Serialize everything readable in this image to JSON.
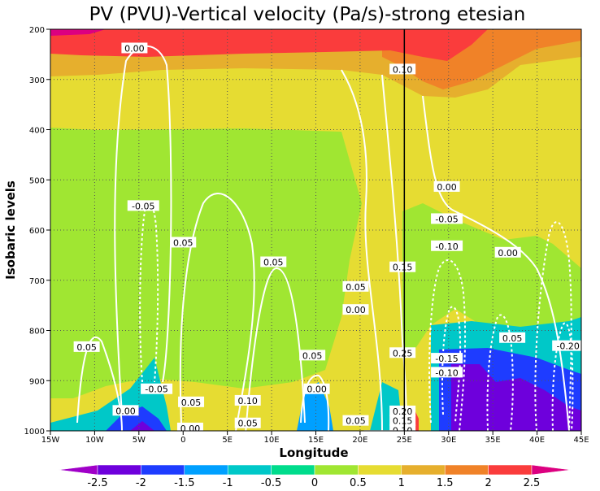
{
  "chart_data": {
    "type": "heatmap",
    "title": "PV (PVU)-Vertical velocity (Pa/s)-strong etesian",
    "xlabel": "Longitude",
    "ylabel": "Isobaric levels",
    "x_ticks": [
      "15W",
      "10W",
      "5W",
      "0",
      "5E",
      "10E",
      "15E",
      "20E",
      "25E",
      "30E",
      "35E",
      "40E",
      "45E"
    ],
    "x_values": [
      -15,
      -10,
      -5,
      0,
      5,
      10,
      15,
      20,
      25,
      30,
      35,
      40,
      45
    ],
    "y_ticks": [
      "200",
      "300",
      "400",
      "500",
      "600",
      "700",
      "800",
      "900",
      "1000"
    ],
    "y_values": [
      200,
      300,
      400,
      500,
      600,
      700,
      800,
      900,
      1000
    ],
    "xlim": [
      -15,
      45
    ],
    "ylim": [
      1000,
      200
    ],
    "grid": true,
    "vertical_marker_x": 25,
    "colorbar": {
      "labels": [
        "-2.5",
        "-2",
        "-1.5",
        "-1",
        "-0.5",
        "0",
        "0.5",
        "1",
        "1.5",
        "2",
        "2.5"
      ],
      "colors": [
        "#a000c8",
        "#6e00dc",
        "#1e3cff",
        "#00a0ff",
        "#00c8c8",
        "#00dc8c",
        "#a0e632",
        "#e6dc32",
        "#e6af2d",
        "#f08228",
        "#fa3c3c",
        "#dc0080"
      ]
    },
    "pv_fields": [
      {
        "level": "bottom",
        "pv": 0.5,
        "color": "#e6dc32"
      },
      {
        "level": "lower",
        "pv": 0.5,
        "color": "#a0e632"
      },
      {
        "level": "mid",
        "pv": 1.0,
        "color": "#e6dc32"
      },
      {
        "level": "upper",
        "pv": 1.5,
        "color": "#e6af2d"
      },
      {
        "level": "tropopause",
        "pv": 2.5,
        "color": "#fa3c3c"
      }
    ],
    "contour_labels": [
      {
        "text": "0.00",
        "lon": -5.5,
        "p": 238
      },
      {
        "text": "0.10",
        "lon": 24.8,
        "p": 280
      },
      {
        "text": "0.00",
        "lon": 29.8,
        "p": 514
      },
      {
        "text": "-0.05",
        "lon": -4.5,
        "p": 552
      },
      {
        "text": "-0.05",
        "lon": 29.8,
        "p": 578
      },
      {
        "text": "0.05",
        "lon": 0,
        "p": 625
      },
      {
        "text": "-0.10",
        "lon": 29.8,
        "p": 632
      },
      {
        "text": "0.00",
        "lon": 36.7,
        "p": 645
      },
      {
        "text": "0.05",
        "lon": 10.2,
        "p": 664
      },
      {
        "text": "0.15",
        "lon": 24.8,
        "p": 674
      },
      {
        "text": "0.05",
        "lon": 19.5,
        "p": 713
      },
      {
        "text": "0.00",
        "lon": 19.5,
        "p": 759
      },
      {
        "text": "0.05",
        "lon": 37.2,
        "p": 815
      },
      {
        "text": "0.05",
        "lon": -10.9,
        "p": 833
      },
      {
        "text": "-0.20",
        "lon": 43.5,
        "p": 831
      },
      {
        "text": "0.05",
        "lon": 14.6,
        "p": 850
      },
      {
        "text": "0.25",
        "lon": 24.8,
        "p": 845
      },
      {
        "text": "-0.15",
        "lon": 29.8,
        "p": 856
      },
      {
        "text": "-0.10",
        "lon": 29.8,
        "p": 884
      },
      {
        "text": "-0.05",
        "lon": -3.0,
        "p": 917
      },
      {
        "text": "0.00",
        "lon": 15.1,
        "p": 917
      },
      {
        "text": "0.05",
        "lon": 0.9,
        "p": 943
      },
      {
        "text": "0.10",
        "lon": 7.3,
        "p": 940
      },
      {
        "text": "0.00",
        "lon": -6.5,
        "p": 960
      },
      {
        "text": "0.20",
        "lon": 24.8,
        "p": 961
      },
      {
        "text": "0.15",
        "lon": 24.8,
        "p": 980
      },
      {
        "text": "0.05",
        "lon": 19.5,
        "p": 980
      },
      {
        "text": "0.05",
        "lon": 7.3,
        "p": 985
      },
      {
        "text": "0.00",
        "lon": 0.8,
        "p": 995
      },
      {
        "text": "0.10",
        "lon": 24.8,
        "p": 999
      },
      {
        "text": "-0.05",
        "lon": 22.2,
        "p": 1010
      },
      {
        "text": "0.05",
        "lon": 24.8,
        "p": 1012
      }
    ]
  }
}
